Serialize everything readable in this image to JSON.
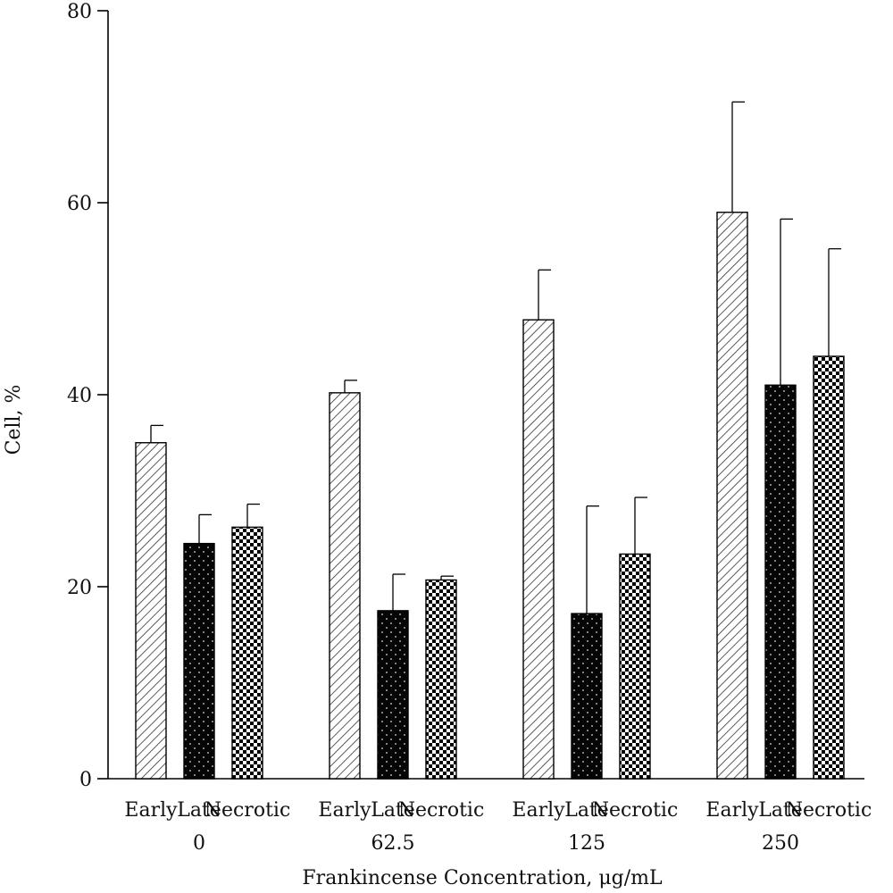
{
  "chart_data": {
    "type": "bar",
    "title": "",
    "xlabel": "Frankincense Concentration, μg/mL",
    "ylabel": "Cell, %",
    "ylim": [
      0,
      80
    ],
    "yticks": [
      "0",
      "20",
      "40",
      "60",
      "80"
    ],
    "groups": [
      "0",
      "62.5",
      "125",
      "250"
    ],
    "series": [
      {
        "name": "Early",
        "pattern": "hatch",
        "values": [
          35,
          40.2,
          47.8,
          59
        ],
        "errors": [
          1.8,
          1.3,
          5.2,
          11.5
        ]
      },
      {
        "name": "Late",
        "pattern": "dots",
        "values": [
          24.5,
          17.5,
          17.2,
          41
        ],
        "errors": [
          3.0,
          3.8,
          11.2,
          17.3
        ]
      },
      {
        "name": "Necrotic",
        "pattern": "checker",
        "values": [
          26.2,
          20.7,
          23.4,
          44
        ],
        "errors": [
          2.4,
          0.4,
          5.9,
          11.2
        ]
      }
    ],
    "grid": false,
    "legend": "none"
  }
}
